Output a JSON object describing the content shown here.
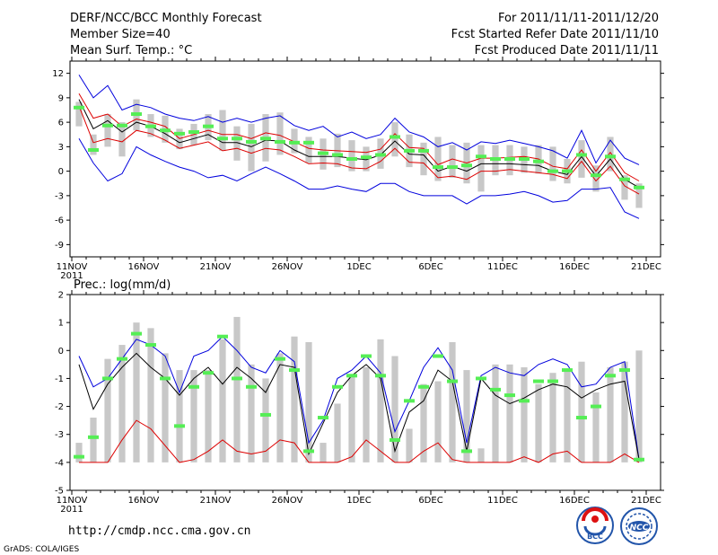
{
  "header": {
    "title": "DERF/NCC/BCC Monthly Forecast",
    "member_size": "Member Size=40",
    "variable": "Mean Surf. Temp.: °C",
    "forecast_period": "For 2011/11/11-2011/12/20",
    "start_date": "Fcst Started Refer Date 2011/11/10",
    "produced_date": "Fcst Produced Date 2011/11/11"
  },
  "footer": {
    "url": "http://cmdp.ncc.cma.gov.cn",
    "credit": "GrADS: COLA/IGES",
    "logo_bcc_text": "BCC",
    "logo_ncc_text": "NCC"
  },
  "colors": {
    "bar": "#c8c8c8",
    "median": "#55ee55",
    "envelope": "#0000dd",
    "mean": "#000000",
    "spread": "#dd0000"
  },
  "chart_data": [
    {
      "type": "line",
      "name": "temperature",
      "title": "Mean Surf. Temp.: °C",
      "ylim": [
        -10.5,
        13.5
      ],
      "yticks": [
        12,
        9,
        6,
        3,
        0,
        -3,
        -6,
        -9
      ],
      "ytick_labels": [
        "12",
        "9",
        "6",
        "3",
        "0",
        "-3",
        "-6",
        "-9"
      ],
      "xticks": [
        {
          "day": 0,
          "label": "11NOV",
          "sub": "2011"
        },
        {
          "day": 5,
          "label": "16NOV"
        },
        {
          "day": 10,
          "label": "21NOV"
        },
        {
          "day": 15,
          "label": "26NOV"
        },
        {
          "day": 20,
          "label": "1DEC"
        },
        {
          "day": 25,
          "label": "6DEC"
        },
        {
          "day": 30,
          "label": "11DEC"
        },
        {
          "day": 35,
          "label": "16DEC"
        },
        {
          "day": 40,
          "label": "21DEC"
        }
      ],
      "bar_low": [
        5.5,
        2.0,
        3.0,
        1.8,
        5.0,
        4.2,
        3.5,
        2.7,
        3.2,
        3.8,
        2.5,
        1.3,
        0.0,
        1.2,
        2.0,
        2.2,
        1.0,
        0.2,
        0.5,
        0.0,
        0.0,
        0.3,
        1.8,
        0.5,
        -0.5,
        -1.2,
        -0.8,
        -1.5,
        -2.5,
        -0.5,
        -0.5,
        -0.2,
        -0.3,
        -1.2,
        -1.5,
        -0.8,
        -2.5,
        0.0,
        -3.5,
        -4.5
      ],
      "bar_high": [
        8.5,
        4.5,
        7.0,
        6.0,
        8.8,
        7.0,
        6.8,
        5.2,
        5.8,
        7.0,
        7.5,
        5.5,
        5.8,
        7.0,
        7.2,
        5.2,
        4.2,
        4.0,
        4.6,
        3.8,
        3.0,
        4.0,
        6.0,
        4.5,
        3.5,
        4.2,
        3.2,
        3.5,
        3.2,
        3.2,
        3.2,
        3.0,
        3.2,
        3.0,
        1.5,
        3.8,
        0.7,
        4.2,
        -0.5,
        -1.5
      ],
      "median": [
        7.8,
        2.6,
        5.6,
        5.6,
        7.0,
        5.5,
        5.0,
        4.6,
        4.8,
        5.5,
        4.0,
        4.0,
        3.6,
        4.0,
        3.6,
        3.5,
        3.5,
        2.2,
        2.0,
        1.5,
        1.7,
        2.0,
        4.2,
        2.5,
        2.5,
        0.5,
        0.5,
        0.7,
        1.8,
        1.5,
        1.5,
        1.5,
        1.2,
        0.0,
        0.0,
        2.0,
        -0.5,
        1.8,
        -1.0,
        -2.0
      ],
      "series": [
        {
          "name": "max",
          "color": "#0000dd",
          "values": [
            11.8,
            9.0,
            10.5,
            7.5,
            8.2,
            7.8,
            7.0,
            6.5,
            6.2,
            6.7,
            6.0,
            6.5,
            6.0,
            6.5,
            6.8,
            5.6,
            5.0,
            5.5,
            4.2,
            4.8,
            4.0,
            4.5,
            6.5,
            4.8,
            4.2,
            3.0,
            3.5,
            2.6,
            3.6,
            3.4,
            3.8,
            3.4,
            3.0,
            2.5,
            1.6,
            5.0,
            1.0,
            3.8,
            1.6,
            0.8
          ]
        },
        {
          "name": "mean_plus_sd",
          "color": "#dd0000",
          "values": [
            9.5,
            6.5,
            7.0,
            5.5,
            6.4,
            6.0,
            5.5,
            4.0,
            4.5,
            5.0,
            4.5,
            4.5,
            4.0,
            4.7,
            4.4,
            3.6,
            2.8,
            2.6,
            2.5,
            2.4,
            2.3,
            2.7,
            4.6,
            2.9,
            2.8,
            0.8,
            1.5,
            1.0,
            1.6,
            1.6,
            1.7,
            1.8,
            1.5,
            0.6,
            0.3,
            2.6,
            0.0,
            2.3,
            -0.2,
            -1.2
          ]
        },
        {
          "name": "mean",
          "color": "#000000",
          "values": [
            8.8,
            5.2,
            6.2,
            4.8,
            6.0,
            5.5,
            4.6,
            3.5,
            4.0,
            4.5,
            3.5,
            3.5,
            3.0,
            3.8,
            3.7,
            2.6,
            1.8,
            1.8,
            1.8,
            1.6,
            1.4,
            2.0,
            3.7,
            2.1,
            2.0,
            0.0,
            0.6,
            0.0,
            0.9,
            0.9,
            0.9,
            0.8,
            0.7,
            0.0,
            -0.4,
            1.8,
            -0.6,
            1.5,
            -1.0,
            -2.0
          ]
        },
        {
          "name": "mean_minus_sd",
          "color": "#dd0000",
          "values": [
            8.0,
            3.5,
            4.0,
            3.6,
            5.0,
            4.6,
            3.8,
            2.8,
            3.2,
            3.6,
            2.5,
            2.8,
            2.2,
            2.8,
            2.6,
            1.8,
            0.9,
            1.0,
            0.9,
            0.4,
            0.3,
            1.2,
            2.8,
            1.1,
            1.0,
            -0.8,
            -0.6,
            -1.0,
            0.0,
            0.0,
            0.2,
            0.0,
            -0.2,
            -0.4,
            -0.9,
            1.2,
            -1.2,
            0.6,
            -1.8,
            -2.8
          ]
        },
        {
          "name": "min",
          "color": "#0000dd",
          "values": [
            4.0,
            1.0,
            -1.2,
            -0.3,
            3.0,
            2.0,
            1.2,
            0.5,
            0.0,
            -0.8,
            -0.5,
            -1.2,
            -0.3,
            0.5,
            -0.3,
            -1.2,
            -2.2,
            -2.2,
            -1.8,
            -2.2,
            -2.5,
            -1.5,
            -1.5,
            -2.5,
            -3.0,
            -3.0,
            -3.0,
            -4.0,
            -3.0,
            -3.0,
            -2.8,
            -2.5,
            -3.0,
            -3.8,
            -3.6,
            -2.2,
            -2.2,
            -2.0,
            -5.0,
            -5.8
          ]
        }
      ]
    },
    {
      "type": "line",
      "name": "precipitation",
      "title": "Prec.: log(mm/d)",
      "ylim": [
        -5,
        2
      ],
      "yticks": [
        2,
        1,
        0,
        -1,
        -2,
        -3,
        -4,
        -5
      ],
      "ytick_labels": [
        "2",
        "1",
        "0",
        "-1",
        "-2",
        "-3",
        "-4",
        "-5"
      ],
      "xticks": [
        {
          "day": 0,
          "label": "11NOV",
          "sub": "2011"
        },
        {
          "day": 5,
          "label": "16NOV"
        },
        {
          "day": 10,
          "label": "21NOV"
        },
        {
          "day": 15,
          "label": "26NOV"
        },
        {
          "day": 20,
          "label": "1DEC"
        },
        {
          "day": 25,
          "label": "6DEC"
        },
        {
          "day": 30,
          "label": "11DEC"
        },
        {
          "day": 35,
          "label": "16DEC"
        },
        {
          "day": 40,
          "label": "21DEC"
        }
      ],
      "baseline": -4,
      "bar_high": [
        -3.3,
        -2.4,
        -0.3,
        0.2,
        1.0,
        0.8,
        -0.1,
        -0.7,
        -0.7,
        -0.7,
        0.4,
        1.2,
        -0.5,
        -1.0,
        -0.1,
        0.5,
        0.3,
        -3.3,
        -1.9,
        -0.9,
        -0.6,
        0.4,
        -0.2,
        -2.8,
        -1.2,
        -1.1,
        0.3,
        -0.7,
        -3.5,
        -0.5,
        -0.5,
        -0.6,
        -1.2,
        -0.8,
        -0.7,
        -0.4,
        -1.5,
        -0.6,
        -0.4,
        0.0
      ],
      "median": [
        -3.8,
        -3.1,
        -1.0,
        -0.3,
        0.6,
        0.2,
        -1.0,
        -2.7,
        -1.3,
        -0.8,
        0.5,
        -1.0,
        -1.3,
        -2.3,
        -0.3,
        -0.7,
        -3.6,
        -2.4,
        -1.3,
        -0.9,
        -0.2,
        -0.9,
        -3.2,
        -1.8,
        -1.3,
        -0.2,
        -1.1,
        -3.6,
        -1.0,
        -1.4,
        -1.6,
        -1.8,
        -1.1,
        -1.1,
        -0.7,
        -2.4,
        -2.0,
        -0.9,
        -0.7,
        -3.9
      ],
      "series": [
        {
          "name": "max",
          "color": "#0000dd",
          "values": [
            -0.2,
            -1.3,
            -1.0,
            -0.3,
            0.4,
            0.2,
            -0.2,
            -1.5,
            -0.2,
            0.0,
            0.5,
            0.0,
            -0.6,
            -0.8,
            0.0,
            -0.4,
            -3.3,
            -2.5,
            -1.0,
            -0.7,
            -0.2,
            -0.8,
            -2.9,
            -1.8,
            -0.6,
            0.1,
            -0.7,
            -3.3,
            -0.9,
            -0.6,
            -0.8,
            -0.9,
            -0.5,
            -0.3,
            -0.5,
            -1.3,
            -1.2,
            -0.6,
            -0.4,
            -3.9
          ]
        },
        {
          "name": "mean",
          "color": "#000000",
          "values": [
            -0.5,
            -2.1,
            -1.2,
            -0.6,
            -0.1,
            -0.6,
            -1.0,
            -1.6,
            -1.0,
            -0.6,
            -1.2,
            -0.6,
            -1.0,
            -1.5,
            -0.5,
            -0.6,
            -3.7,
            -2.6,
            -1.5,
            -0.9,
            -0.5,
            -1.0,
            -3.6,
            -2.2,
            -1.8,
            -0.7,
            -1.1,
            -3.6,
            -1.0,
            -1.6,
            -1.9,
            -1.7,
            -1.4,
            -1.2,
            -1.3,
            -1.7,
            -1.4,
            -1.2,
            -1.1,
            -3.9
          ]
        },
        {
          "name": "mean_minus_sd",
          "color": "#dd0000",
          "values": [
            -4.0,
            -4.0,
            -4.0,
            -3.2,
            -2.5,
            -2.8,
            -3.4,
            -4.0,
            -3.9,
            -3.6,
            -3.2,
            -3.6,
            -3.7,
            -3.6,
            -3.2,
            -3.3,
            -4.0,
            -4.0,
            -4.0,
            -3.8,
            -3.2,
            -3.6,
            -4.0,
            -4.0,
            -3.6,
            -3.3,
            -3.9,
            -4.0,
            -4.0,
            -4.0,
            -4.0,
            -3.8,
            -4.0,
            -3.7,
            -3.6,
            -4.0,
            -4.0,
            -4.0,
            -3.7,
            -4.0
          ]
        }
      ]
    }
  ]
}
